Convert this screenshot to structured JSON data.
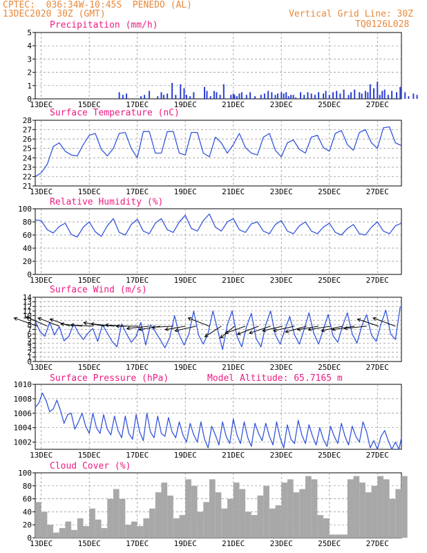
{
  "header": {
    "line1_left": "CPTEC:  036:34W-10:45S  PENEDO (AL)",
    "line2_left": "13DEC2020 30Z (GMT)",
    "line1_right": "Vertical Grid Line: 30Z",
    "line2_right": "TQ0126L028"
  },
  "colors": {
    "header": "#e8883a",
    "title": "#ee1b82",
    "line": "#3355dd",
    "bar": "#2a3fd0",
    "cloud": "#a8a8a8",
    "grid": "#888888"
  },
  "x_axis_dates": [
    "13DEC",
    "15DEC",
    "17DEC",
    "19DEC",
    "21DEC",
    "23DEC",
    "25DEC",
    "27DEC"
  ],
  "chart_data": [
    {
      "type": "bar",
      "title": "Precipitation (mm/h)",
      "ylim": [
        0,
        5
      ],
      "yticks": [
        0,
        1,
        2,
        3,
        4,
        5
      ],
      "x_days": [
        3.5,
        3.65,
        3.8,
        4.4,
        4.55,
        4.75,
        5.1,
        5.25,
        5.35,
        5.5,
        5.7,
        5.85,
        6.05,
        6.2,
        6.3,
        6.45,
        6.6,
        7.05,
        7.15,
        7.3,
        7.45,
        7.55,
        7.7,
        7.85,
        8.15,
        8.25,
        8.3,
        8.4,
        8.5,
        8.6,
        8.8,
        8.95,
        9.15,
        9.4,
        9.55,
        9.7,
        9.85,
        10.0,
        10.1,
        10.25,
        10.35,
        10.45,
        10.55,
        10.65,
        10.75,
        10.85,
        11.05,
        11.2,
        11.35,
        11.5,
        11.65,
        11.8,
        12.0,
        12.1,
        12.25,
        12.4,
        12.55,
        12.7,
        12.85,
        13.05,
        13.15,
        13.3,
        13.5,
        13.6,
        13.75,
        13.85,
        13.95,
        14.1,
        14.25,
        14.35,
        14.45,
        14.55,
        14.7,
        14.85,
        15.05,
        15.2,
        15.4,
        15.55,
        15.75,
        15.9
      ],
      "values": [
        0.5,
        0.3,
        0.4,
        0.2,
        0.3,
        0.6,
        0.2,
        0.5,
        0.3,
        0.4,
        1.2,
        0.3,
        1.1,
        0.8,
        0.3,
        0.2,
        0.5,
        0.9,
        0.6,
        0.2,
        0.6,
        0.5,
        0.3,
        1.1,
        0.3,
        0.4,
        0.3,
        0.2,
        0.4,
        0.5,
        0.3,
        0.5,
        0.2,
        0.3,
        0.4,
        0.6,
        0.5,
        0.3,
        0.4,
        0.5,
        0.4,
        0.5,
        0.2,
        0.3,
        0.3,
        0.1,
        0.5,
        0.3,
        0.5,
        0.4,
        0.3,
        0.5,
        0.4,
        0.6,
        0.3,
        0.5,
        0.6,
        0.4,
        0.7,
        0.3,
        0.5,
        0.7,
        0.5,
        0.4,
        0.6,
        0.5,
        1.1,
        0.8,
        1.3,
        0.3,
        0.6,
        0.7,
        0.3,
        0.6,
        0.5,
        0.9,
        0.5,
        0.2,
        0.4,
        0.3
      ]
    },
    {
      "type": "line",
      "title": "Surface Temperature (nC)",
      "ylim": [
        21,
        28
      ],
      "yticks": [
        21,
        22,
        23,
        24,
        25,
        26,
        27,
        28
      ],
      "x_days": [
        0,
        0.25,
        0.5,
        0.75,
        1.0,
        1.25,
        1.5,
        1.75,
        2.0,
        2.25,
        2.5,
        2.75,
        3.0,
        3.25,
        3.5,
        3.75,
        4.0,
        4.25,
        4.5,
        4.75,
        5.0,
        5.25,
        5.5,
        5.75,
        6.0,
        6.25,
        6.5,
        6.75,
        7.0,
        7.25,
        7.5,
        7.75,
        8.0,
        8.25,
        8.5,
        8.75,
        9.0,
        9.25,
        9.5,
        9.75,
        10.0,
        10.25,
        10.5,
        10.75,
        11.0,
        11.25,
        11.5,
        11.75,
        12.0,
        12.25,
        12.5,
        12.75,
        13.0,
        13.25,
        13.5,
        13.75,
        14.0,
        14.25,
        14.5,
        14.75,
        15.0,
        15.25
      ],
      "values": [
        22.0,
        22.4,
        23.3,
        25.2,
        25.6,
        24.7,
        24.3,
        24.2,
        25.4,
        26.4,
        26.6,
        24.9,
        24.2,
        25.0,
        26.6,
        26.7,
        25.0,
        24.0,
        26.8,
        26.8,
        24.5,
        24.5,
        26.8,
        26.8,
        24.5,
        24.3,
        26.7,
        26.7,
        24.5,
        24.1,
        26.2,
        25.6,
        24.5,
        25.4,
        26.6,
        25.1,
        24.5,
        24.3,
        26.2,
        26.6,
        24.8,
        24.1,
        25.6,
        25.9,
        24.9,
        24.5,
        26.2,
        26.4,
        25.1,
        24.7,
        26.6,
        26.9,
        25.4,
        24.8,
        26.7,
        27.0,
        25.6,
        25.0,
        27.2,
        27.3,
        25.6,
        25.3
      ]
    },
    {
      "type": "line",
      "title": "Relative Humidity (%)",
      "ylim": [
        0,
        100
      ],
      "yticks": [
        0,
        20,
        40,
        60,
        80,
        100
      ],
      "x_days": [
        0,
        0.25,
        0.5,
        0.75,
        1.0,
        1.25,
        1.5,
        1.75,
        2.0,
        2.25,
        2.5,
        2.75,
        3.0,
        3.25,
        3.5,
        3.75,
        4.0,
        4.25,
        4.5,
        4.75,
        5.0,
        5.25,
        5.5,
        5.75,
        6.0,
        6.25,
        6.5,
        6.75,
        7.0,
        7.25,
        7.5,
        7.75,
        8.0,
        8.25,
        8.5,
        8.75,
        9.0,
        9.25,
        9.5,
        9.75,
        10.0,
        10.25,
        10.5,
        10.75,
        11.0,
        11.25,
        11.5,
        11.75,
        12.0,
        12.25,
        12.5,
        12.75,
        13.0,
        13.25,
        13.5,
        13.75,
        14.0,
        14.25,
        14.5,
        14.75,
        15.0,
        15.25
      ],
      "values": [
        83,
        82,
        68,
        63,
        73,
        78,
        61,
        57,
        72,
        80,
        65,
        58,
        74,
        85,
        64,
        60,
        76,
        84,
        66,
        62,
        78,
        85,
        68,
        64,
        80,
        90,
        70,
        66,
        82,
        92,
        72,
        66,
        80,
        85,
        68,
        64,
        77,
        80,
        66,
        62,
        76,
        82,
        66,
        62,
        74,
        80,
        66,
        62,
        72,
        78,
        64,
        60,
        70,
        76,
        62,
        60,
        72,
        80,
        66,
        62,
        74,
        78
      ]
    },
    {
      "type": "line",
      "title": "Surface Wind (m/s)",
      "ylim": [
        0,
        14
      ],
      "yticks": [
        0,
        1,
        2,
        3,
        4,
        5,
        6,
        7,
        8,
        9,
        10,
        11,
        12,
        13,
        14
      ],
      "x_days": [
        0,
        0.2,
        0.4,
        0.6,
        0.8,
        1.0,
        1.2,
        1.4,
        1.6,
        1.8,
        2.0,
        2.2,
        2.4,
        2.6,
        2.8,
        3.0,
        3.2,
        3.4,
        3.6,
        3.8,
        4.0,
        4.2,
        4.4,
        4.6,
        4.8,
        5.0,
        5.2,
        5.4,
        5.6,
        5.8,
        6.0,
        6.2,
        6.4,
        6.6,
        6.8,
        7.0,
        7.2,
        7.4,
        7.6,
        7.8,
        8.0,
        8.2,
        8.4,
        8.6,
        8.8,
        9.0,
        9.2,
        9.4,
        9.6,
        9.8,
        10.0,
        10.2,
        10.4,
        10.6,
        10.8,
        11.0,
        11.2,
        11.4,
        11.6,
        11.8,
        12.0,
        12.2,
        12.4,
        12.6,
        12.8,
        13.0,
        13.2,
        13.4,
        13.6,
        13.8,
        14.0,
        14.2,
        14.4,
        14.6,
        14.8,
        15.0,
        15.2
      ],
      "values": [
        8.8,
        6.5,
        5.5,
        8.5,
        5.8,
        7.6,
        4.5,
        5.5,
        8.2,
        6.2,
        4.8,
        6.2,
        7.2,
        4.4,
        8.0,
        6.2,
        4.4,
        3.2,
        8.2,
        6.0,
        4.2,
        5.5,
        8.5,
        3.6,
        8.0,
        6.5,
        4.8,
        3.0,
        5.2,
        10.0,
        5.8,
        3.6,
        6.0,
        11.0,
        5.8,
        3.8,
        6.2,
        11.0,
        6.8,
        2.6,
        8.0,
        11.0,
        5.5,
        3.2,
        7.6,
        10.5,
        5.0,
        3.2,
        8.0,
        11.0,
        5.8,
        3.8,
        7.0,
        9.8,
        5.8,
        3.8,
        7.0,
        10.6,
        6.2,
        3.8,
        7.0,
        10.2,
        5.6,
        4.2,
        7.8,
        10.6,
        6.0,
        4.0,
        7.8,
        10.2,
        5.8,
        4.4,
        8.2,
        11.2,
        6.0,
        4.8,
        12.0
      ]
    },
    {
      "type": "line",
      "title": "Surface Pressure (hPa)",
      "annotation": "Model Altitude: 65.7165 m",
      "ylim": [
        1001,
        1010
      ],
      "yticks": [
        1002,
        1004,
        1006,
        1008,
        1010
      ],
      "x_days": [
        0,
        0.15,
        0.3,
        0.45,
        0.6,
        0.75,
        0.9,
        1.05,
        1.2,
        1.35,
        1.5,
        1.65,
        1.8,
        1.95,
        2.1,
        2.25,
        2.4,
        2.55,
        2.7,
        2.85,
        3.0,
        3.15,
        3.3,
        3.45,
        3.6,
        3.75,
        3.9,
        4.05,
        4.2,
        4.35,
        4.5,
        4.65,
        4.8,
        4.95,
        5.1,
        5.25,
        5.4,
        5.55,
        5.7,
        5.85,
        6.0,
        6.15,
        6.3,
        6.45,
        6.6,
        6.75,
        6.9,
        7.05,
        7.2,
        7.35,
        7.5,
        7.65,
        7.8,
        7.95,
        8.1,
        8.25,
        8.4,
        8.55,
        8.7,
        8.85,
        9.0,
        9.15,
        9.3,
        9.45,
        9.6,
        9.75,
        9.9,
        10.05,
        10.2,
        10.35,
        10.5,
        10.65,
        10.8,
        10.95,
        11.1,
        11.25,
        11.4,
        11.55,
        11.7,
        11.85,
        12.0,
        12.15,
        12.3,
        12.45,
        12.6,
        12.75,
        12.9,
        13.05,
        13.2,
        13.35,
        13.5,
        13.65,
        13.8,
        13.95,
        14.1,
        14.25,
        14.4,
        14.55,
        14.7,
        14.85,
        15.0,
        15.15,
        15.25
      ],
      "values": [
        1006.8,
        1007.4,
        1008.8,
        1007.8,
        1006.2,
        1006.6,
        1007.8,
        1006.4,
        1004.6,
        1005.8,
        1006.0,
        1003.8,
        1004.8,
        1006.0,
        1004.2,
        1003.2,
        1006.0,
        1004.0,
        1003.2,
        1005.8,
        1003.8,
        1003.0,
        1005.6,
        1003.6,
        1002.6,
        1005.6,
        1003.2,
        1002.4,
        1005.8,
        1003.4,
        1002.2,
        1006.0,
        1003.4,
        1002.6,
        1005.6,
        1003.2,
        1002.8,
        1005.4,
        1003.4,
        1002.6,
        1004.8,
        1003.0,
        1002.0,
        1004.6,
        1003.0,
        1002.0,
        1004.8,
        1002.4,
        1001.2,
        1004.2,
        1003.0,
        1001.6,
        1004.8,
        1002.8,
        1001.8,
        1005.2,
        1003.0,
        1001.8,
        1004.8,
        1002.6,
        1001.4,
        1004.6,
        1003.2,
        1002.2,
        1004.6,
        1002.8,
        1001.6,
        1004.8,
        1002.6,
        1001.2,
        1004.4,
        1002.4,
        1001.8,
        1005.0,
        1003.0,
        1001.8,
        1004.4,
        1002.8,
        1001.6,
        1004.0,
        1002.4,
        1001.4,
        1004.2,
        1002.8,
        1001.8,
        1004.6,
        1002.8,
        1001.6,
        1004.2,
        1002.8,
        1002.0,
        1004.8,
        1003.4,
        1001.2,
        1002.2,
        1001.0,
        1002.8,
        1003.6,
        1002.2,
        1001.0,
        1002.0,
        1001.0,
        1002.6
      ]
    },
    {
      "type": "area",
      "title": "Cloud Cover (%)",
      "ylim": [
        0,
        100
      ],
      "yticks": [
        0,
        20,
        40,
        60,
        80,
        100
      ],
      "x_days": [
        0,
        0.25,
        0.5,
        0.75,
        1.0,
        1.25,
        1.5,
        1.75,
        2.0,
        2.25,
        2.5,
        2.75,
        3.0,
        3.25,
        3.5,
        3.75,
        4.0,
        4.25,
        4.5,
        4.75,
        5.0,
        5.25,
        5.5,
        5.75,
        6.0,
        6.25,
        6.5,
        6.75,
        7.0,
        7.25,
        7.5,
        7.75,
        8.0,
        8.25,
        8.5,
        8.75,
        9.0,
        9.25,
        9.5,
        9.75,
        10.0,
        10.25,
        10.5,
        10.75,
        11.0,
        11.25,
        11.5,
        11.75,
        12.0,
        12.25,
        12.5,
        12.75,
        13.0,
        13.25,
        13.5,
        13.75,
        14.0,
        14.25,
        14.5,
        14.75,
        15.0,
        15.25
      ],
      "values": [
        55,
        40,
        20,
        8,
        15,
        25,
        12,
        30,
        18,
        45,
        28,
        15,
        60,
        75,
        60,
        20,
        25,
        18,
        30,
        45,
        70,
        85,
        65,
        30,
        35,
        90,
        80,
        40,
        55,
        90,
        70,
        45,
        60,
        85,
        75,
        40,
        35,
        65,
        80,
        45,
        50,
        85,
        90,
        70,
        75,
        95,
        90,
        35,
        30,
        5,
        5,
        5,
        90,
        95,
        85,
        70,
        80,
        95,
        90,
        60,
        75,
        95
      ]
    }
  ],
  "wind_vectors": [
    {
      "day": 0.1,
      "u": -1.0,
      "v": 0.35
    },
    {
      "day": 0.5,
      "u": -0.9,
      "v": 0.4
    },
    {
      "day": 1.0,
      "u": -0.9,
      "v": 0.35
    },
    {
      "day": 1.45,
      "u": -0.85,
      "v": 0.3
    },
    {
      "day": 1.95,
      "u": -0.9,
      "v": 0.1
    },
    {
      "day": 2.4,
      "u": -0.95,
      "v": 0.05
    },
    {
      "day": 2.9,
      "u": -0.9,
      "v": 0.15
    },
    {
      "day": 3.3,
      "u": -1.0,
      "v": 0.1
    },
    {
      "day": 3.8,
      "u": -0.9,
      "v": 0.05
    },
    {
      "day": 4.3,
      "u": -0.95,
      "v": 0.0
    },
    {
      "day": 4.75,
      "u": -0.95,
      "v": -0.1
    },
    {
      "day": 5.2,
      "u": -0.9,
      "v": -0.15
    },
    {
      "day": 5.75,
      "u": -0.9,
      "v": -0.05
    },
    {
      "day": 6.25,
      "u": -0.85,
      "v": -0.15
    },
    {
      "day": 6.7,
      "u": -0.9,
      "v": -0.2
    },
    {
      "day": 7.25,
      "u": -0.9,
      "v": 0.35
    },
    {
      "day": 7.75,
      "u": -0.7,
      "v": -0.45
    },
    {
      "day": 8.3,
      "u": -0.6,
      "v": -0.5
    },
    {
      "day": 8.75,
      "u": -0.85,
      "v": -0.3
    },
    {
      "day": 9.3,
      "u": -0.9,
      "v": -0.35
    },
    {
      "day": 9.8,
      "u": -0.9,
      "v": -0.3
    },
    {
      "day": 10.3,
      "u": -0.85,
      "v": -0.2
    },
    {
      "day": 10.8,
      "u": -0.9,
      "v": -0.2
    },
    {
      "day": 11.3,
      "u": -0.9,
      "v": -0.25
    },
    {
      "day": 11.8,
      "u": -0.9,
      "v": -0.15
    },
    {
      "day": 12.3,
      "u": -0.95,
      "v": -0.15
    },
    {
      "day": 12.8,
      "u": -0.9,
      "v": -0.2
    },
    {
      "day": 13.3,
      "u": -0.95,
      "v": -0.15
    },
    {
      "day": 13.8,
      "u": -0.95,
      "v": -0.1
    },
    {
      "day": 14.3,
      "u": -0.9,
      "v": 0.3
    },
    {
      "day": 15.0,
      "u": -0.95,
      "v": 0.35
    }
  ]
}
